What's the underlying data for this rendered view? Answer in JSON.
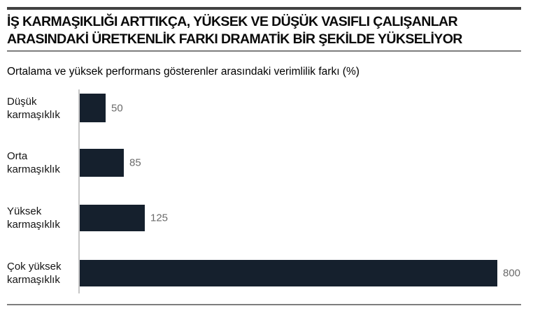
{
  "page": {
    "title_line1": "İŞ KARMAŞIKLIĞI ARTTIKÇA, YÜKSEK VE DÜŞÜK VASIFLI ÇALIŞANLAR",
    "title_line2": "ARASINDAKİ ÜRETKENLİK FARKI DRAMATİK BİR ŞEKİLDE YÜKSELİYOR",
    "subtitle": "Ortalama ve yüksek performans gösterenler arasındaki verimlilik farkı (%)"
  },
  "colors": {
    "bar": "#15202d",
    "value_label": "#6b6b6b",
    "category_label": "#141414",
    "axis_line": "#c6c6c6",
    "top_rule": "#424242",
    "gray_rule": "#7d7d7d",
    "background": "#ffffff"
  },
  "chart_data": {
    "type": "bar",
    "orientation": "horizontal",
    "title": "Ortalama ve yüksek performans gösterenler arasındaki verimlilik farkı (%)",
    "categories": [
      "Düşük karmaşıklık",
      "Orta karmaşıklık",
      "Yüksek karmaşıklık",
      "Çok yüksek karmaşıklık"
    ],
    "category_lines": [
      [
        "Düşük",
        "karmaşıklık"
      ],
      [
        "Orta",
        "karmaşıklık"
      ],
      [
        "Yüksek",
        "karmaşıklık"
      ],
      [
        "Çok yüksek",
        "karmaşıklık"
      ]
    ],
    "values": [
      50,
      85,
      125,
      800
    ],
    "data_labels": [
      "50",
      "85",
      "125",
      "800"
    ],
    "xlabel": "",
    "ylabel": "",
    "xlim": [
      0,
      800
    ],
    "grid": false,
    "legend": false
  }
}
